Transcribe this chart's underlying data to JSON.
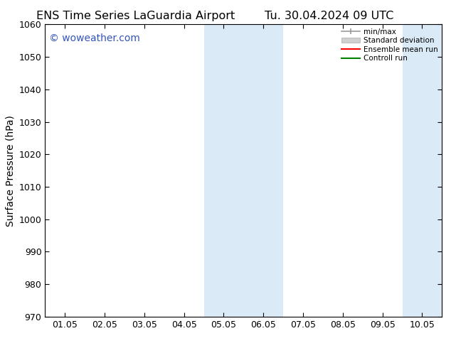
{
  "title_left": "ENS Time Series LaGuardia Airport",
  "title_right": "Tu. 30.04.2024 09 UTC",
  "ylabel": "Surface Pressure (hPa)",
  "ylim": [
    970,
    1060
  ],
  "yticks": [
    970,
    980,
    990,
    1000,
    1010,
    1020,
    1030,
    1040,
    1050,
    1060
  ],
  "xtick_labels": [
    "01.05",
    "02.05",
    "03.05",
    "04.05",
    "05.05",
    "06.05",
    "07.05",
    "08.05",
    "09.05",
    "10.05"
  ],
  "x_positions": [
    0,
    1,
    2,
    3,
    4,
    5,
    6,
    7,
    8,
    9
  ],
  "xlim": [
    -0.5,
    9.5
  ],
  "shaded_bands": [
    {
      "x_start": 3.5,
      "x_end": 4.5
    },
    {
      "x_start": 4.5,
      "x_end": 5.5
    },
    {
      "x_start": 8.5,
      "x_end": 9.5
    }
  ],
  "shaded_color": "#daeaf7",
  "background_color": "#ffffff",
  "watermark_text": "© woweather.com",
  "watermark_color": "#3355bb",
  "watermark_fontsize": 10,
  "legend_labels": [
    "min/max",
    "Standard deviation",
    "Ensemble mean run",
    "Controll run"
  ],
  "legend_line_colors": [
    "#aaaaaa",
    "#cccccc",
    "#ff0000",
    "#008000"
  ],
  "title_fontsize": 11.5,
  "axis_label_fontsize": 10,
  "tick_fontsize": 9,
  "spine_color": "#000000"
}
